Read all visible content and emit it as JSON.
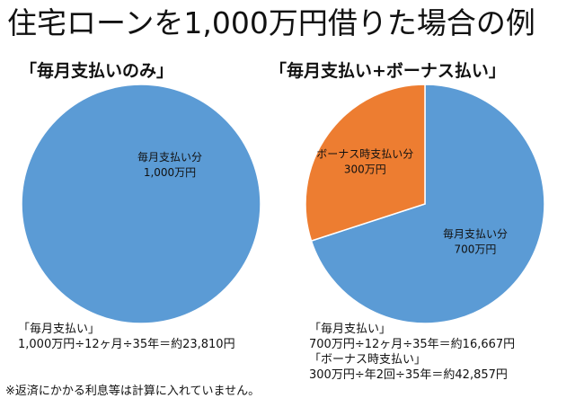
{
  "title": "住宅ローンを1,000万円借りた場合の例",
  "chart_data": [
    {
      "type": "pie",
      "title": "「毎月支払いのみ」",
      "series": [
        {
          "name": "",
          "slices": [
            {
              "label": "毎月支払い分",
              "value_label": "1,000万円",
              "value": 1000,
              "color": "#5b9bd5"
            }
          ]
        }
      ],
      "legend": "none"
    },
    {
      "type": "pie",
      "title": "「毎月支払い+ボーナス払い」",
      "series": [
        {
          "name": "",
          "slices": [
            {
              "label": "毎月支払い分",
              "value_label": "700万円",
              "value": 700,
              "color": "#5b9bd5"
            },
            {
              "label": "ボーナス時支払い分",
              "value_label": "300万円",
              "value": 300,
              "color": "#ed7d31"
            }
          ]
        }
      ],
      "legend": "none"
    }
  ],
  "notes": {
    "left": [
      "「毎月支払い」",
      "1,000万円÷12ヶ月÷35年＝約23,810円"
    ],
    "right": [
      "「毎月支払い」",
      "700万円÷12ヶ月÷35年＝約16,667円",
      "「ボーナス時支払い」",
      "300万円÷年2回÷35年＝約42,857円"
    ]
  },
  "footnote": "※返済にかかる利息等は計算に入れていません。"
}
